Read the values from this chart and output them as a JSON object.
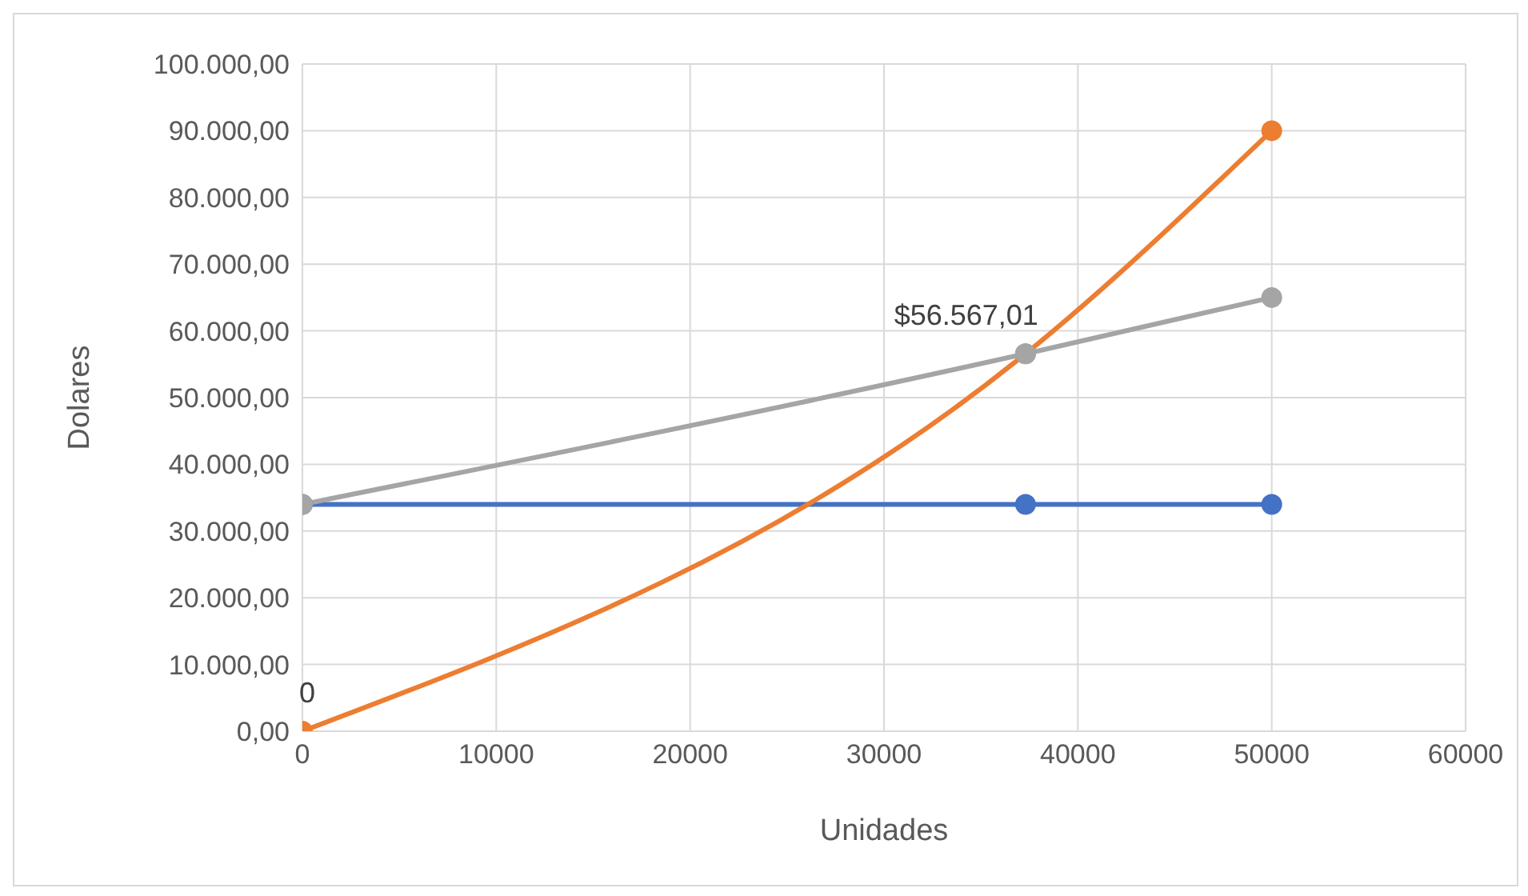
{
  "chart_data": {
    "type": "line",
    "xlabel": "Unidades",
    "ylabel": "Dolares",
    "series": [
      {
        "color": "#4472c4",
        "x": [
          0,
          37300,
          50000
        ],
        "values": [
          34000,
          34000,
          34000
        ]
      },
      {
        "color": "#ed7d31",
        "x": [
          0,
          37300,
          50000
        ],
        "values": [
          0,
          56567.01,
          90000
        ]
      },
      {
        "color": "#a5a5a5",
        "x": [
          0,
          37300,
          50000
        ],
        "values": [
          34000,
          56567.01,
          65000
        ]
      }
    ],
    "xlim": [
      0,
      60000
    ],
    "xticks": [
      0,
      10000,
      20000,
      30000,
      40000,
      50000,
      60000
    ],
    "ylim": [
      0,
      100000
    ],
    "yticks": [
      {
        "value": 0,
        "label": "0,00"
      },
      {
        "value": 10000,
        "label": "10.000,00"
      },
      {
        "value": 20000,
        "label": "20.000,00"
      },
      {
        "value": 30000,
        "label": "30.000,00"
      },
      {
        "value": 40000,
        "label": "40.000,00"
      },
      {
        "value": 50000,
        "label": "50.000,00"
      },
      {
        "value": 60000,
        "label": "60.000,00"
      },
      {
        "value": 70000,
        "label": "70.000,00"
      },
      {
        "value": 80000,
        "label": "80.000,00"
      },
      {
        "value": 90000,
        "label": "90.000,00"
      },
      {
        "value": 100000,
        "label": "100.000,00"
      }
    ],
    "annotations": [
      {
        "text": "0",
        "x": 0,
        "y": 0
      },
      {
        "text": "$56.567,01",
        "x": 37300,
        "y": 56567.01
      }
    ],
    "grid": true,
    "marker": "circle",
    "line_style": "solid",
    "legend": false
  }
}
